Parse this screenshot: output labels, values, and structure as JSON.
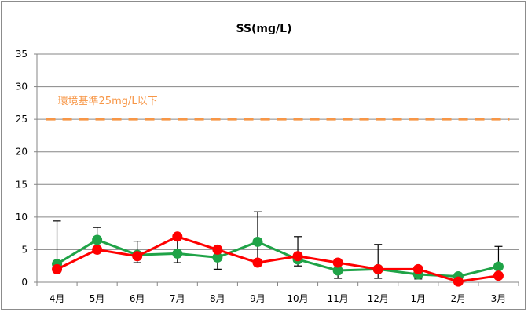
{
  "chart_data": {
    "type": "line",
    "title": "SS(mg/L)",
    "xlabel": "",
    "ylabel": "",
    "categories": [
      "4月",
      "5月",
      "6月",
      "7月",
      "8月",
      "9月",
      "10月",
      "11月",
      "12月",
      "1月",
      "2月",
      "3月"
    ],
    "ylim": [
      0,
      35
    ],
    "yticks": [
      0,
      5,
      10,
      15,
      20,
      25,
      30,
      35
    ],
    "grid": true,
    "legend": "none",
    "series": [
      {
        "color": "#1fa347",
        "values": [
          2.8,
          6.5,
          4.2,
          4.4,
          3.8,
          6.2,
          3.5,
          1.8,
          2.0,
          1.2,
          0.9,
          2.4
        ],
        "error_max": [
          9.4,
          8.4,
          6.3,
          7.0,
          5.0,
          10.8,
          7.0,
          3.0,
          5.8,
          2.0,
          1.3,
          5.5
        ],
        "error_min": [
          1.5,
          4.9,
          3.0,
          3.0,
          2.0,
          3.0,
          2.5,
          0.6,
          0.6,
          0.5,
          0.5,
          1.0
        ]
      },
      {
        "color": "#ff0000",
        "values": [
          2.0,
          5.0,
          4.0,
          7.0,
          5.0,
          3.0,
          4.0,
          3.0,
          2.0,
          2.0,
          0.1,
          1.0
        ]
      }
    ],
    "reference_line": {
      "value": 25,
      "color": "#f79646",
      "label": "環境基準25mg/L以下"
    }
  }
}
